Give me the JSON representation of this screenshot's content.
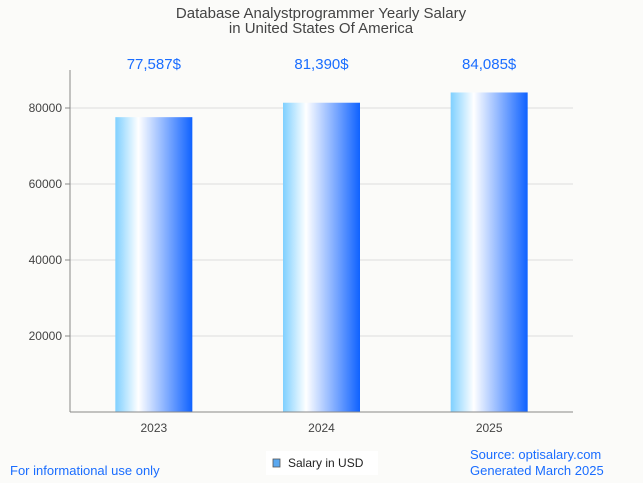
{
  "chart_data": {
    "type": "bar",
    "title": [
      "Database Analystprogrammer Yearly Salary",
      "in United States Of America"
    ],
    "categories": [
      "2023",
      "2024",
      "2025"
    ],
    "values": [
      77587,
      81390,
      84085
    ],
    "data_labels": [
      "77,587$",
      "81,390$",
      "84,085$"
    ],
    "yticks": [
      20000,
      40000,
      60000,
      80000
    ],
    "ylim": [
      0,
      90000
    ],
    "grid": true,
    "legend": {
      "label": "Salary in USD",
      "placement": "bottom-center"
    },
    "xlabel": "",
    "ylabel": ""
  },
  "footer": {
    "left": "For informational use only",
    "source": "Source: optisalary.com",
    "generated": "Generated March 2025"
  },
  "colors": {
    "label": "#1a6dff",
    "bar_left": "#7fd0ff",
    "bar_mid": "#ffffff",
    "bar_right": "#0f62ff"
  }
}
